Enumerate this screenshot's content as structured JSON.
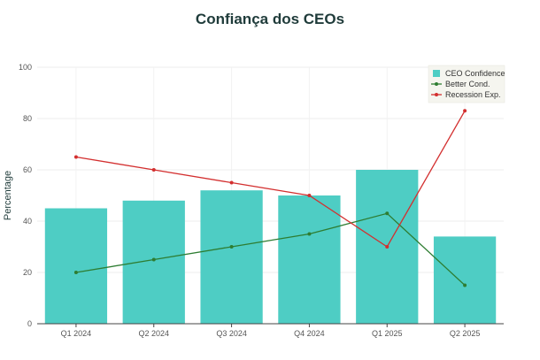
{
  "chart_data": {
    "type": "bar",
    "title": "Confiança dos CEOs",
    "xlabel": "",
    "ylabel": "Percentage",
    "categories": [
      "Q1 2024",
      "Q2 2024",
      "Q3 2024",
      "Q4 2024",
      "Q1 2025",
      "Q2 2025"
    ],
    "ylim": [
      0,
      100
    ],
    "yticks": [
      0,
      20,
      40,
      60,
      80,
      100
    ],
    "grid": true,
    "legend_position": "top-right",
    "series": [
      {
        "name": "CEO Confidence",
        "kind": "bar",
        "color": "#4ecdc4",
        "values": [
          45,
          48,
          52,
          50,
          60,
          34
        ]
      },
      {
        "name": "Better Cond.",
        "kind": "line",
        "color": "#2e7d32",
        "values": [
          20,
          25,
          30,
          35,
          43,
          15
        ]
      },
      {
        "name": "Recession Exp.",
        "kind": "line",
        "color": "#d32f2f",
        "values": [
          65,
          60,
          55,
          50,
          30,
          83
        ]
      }
    ]
  }
}
